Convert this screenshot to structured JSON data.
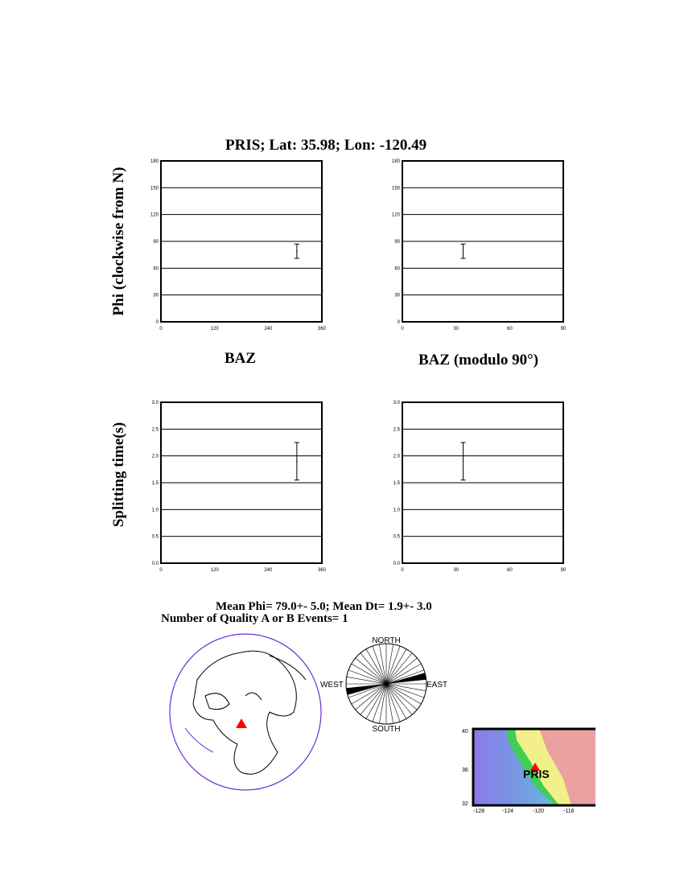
{
  "title": "PRIS; Lat:  35.98;  Lon: -120.49",
  "ylabel_top": "Phi (clockwise from N)",
  "ylabel_bottom": "Splitting time(s)",
  "xlabel_left": "BAZ",
  "xlabel_right": "BAZ (modulo 90°)",
  "summary_line1": "Mean Phi= 79.0+-  5.0; Mean Dt=  1.9+-  3.0",
  "summary_line2": "Number of Quality A  or B Events=  1",
  "rose": {
    "north": "NORTH",
    "south": "SOUTH",
    "east": "EAST",
    "west": "WEST",
    "phi_deg": 79
  },
  "map": {
    "station": "PRIS",
    "yticks": [
      "40",
      "36",
      "32"
    ],
    "xticks": [
      "-128",
      "-124",
      "-120",
      "-116"
    ],
    "marker_color": "#ff0000"
  },
  "chart_data": [
    {
      "type": "scatter",
      "id": "phi-baz",
      "xlim": [
        0,
        360
      ],
      "ylim": [
        0,
        180
      ],
      "xticks": [
        0,
        120,
        240,
        360
      ],
      "yticks": [
        0,
        30,
        60,
        90,
        120,
        150,
        180
      ],
      "grid": true,
      "points": [
        {
          "x": 304,
          "y": 79,
          "ylow": 71,
          "yhigh": 87
        }
      ]
    },
    {
      "type": "scatter",
      "id": "phi-baz90",
      "xlim": [
        0,
        90
      ],
      "ylim": [
        0,
        180
      ],
      "xticks": [
        0,
        30,
        60,
        90
      ],
      "yticks": [
        0,
        30,
        60,
        90,
        120,
        150,
        180
      ],
      "grid": true,
      "points": [
        {
          "x": 34,
          "y": 79,
          "ylow": 71,
          "yhigh": 87
        }
      ]
    },
    {
      "type": "scatter",
      "id": "dt-baz",
      "xlim": [
        0,
        360
      ],
      "ylim": [
        0,
        3
      ],
      "xticks": [
        0,
        120,
        240,
        360
      ],
      "yticks": [
        "0.0",
        "0.5",
        "1.0",
        "1.5",
        "2.0",
        "2.5",
        "3.0"
      ],
      "grid": true,
      "points": [
        {
          "x": 304,
          "y": 1.9,
          "ylow": 1.55,
          "yhigh": 2.25
        }
      ]
    },
    {
      "type": "scatter",
      "id": "dt-baz90",
      "xlim": [
        0,
        90
      ],
      "ylim": [
        0,
        3
      ],
      "xticks": [
        0,
        30,
        60,
        90
      ],
      "yticks": [
        "0.0",
        "0.5",
        "1.0",
        "1.5",
        "2.0",
        "2.5",
        "3.0"
      ],
      "grid": true,
      "points": [
        {
          "x": 34,
          "y": 1.9,
          "ylow": 1.55,
          "yhigh": 2.25
        }
      ]
    }
  ]
}
